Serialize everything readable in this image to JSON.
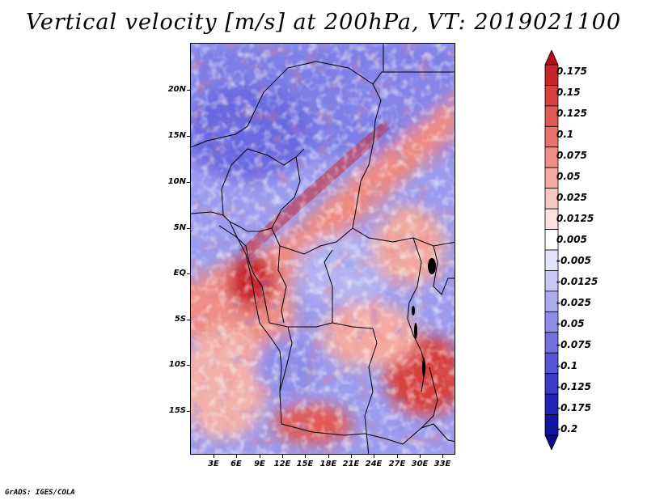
{
  "title": "Vertical velocity [m/s] at 200hPa, VT: 2019021100",
  "footer": "GrADS: IGES/COLA",
  "map": {
    "y_axis_labels": [
      "20N",
      "15N",
      "10N",
      "5N",
      "EQ",
      "5S",
      "10S",
      "15S"
    ],
    "x_axis_labels": [
      "3E",
      "6E",
      "9E",
      "12E",
      "15E",
      "18E",
      "21E",
      "24E",
      "27E",
      "30E",
      "33E"
    ]
  },
  "colorbar": {
    "labels": [
      "0.175",
      "0.15",
      "0.125",
      "0.1",
      "0.075",
      "0.05",
      "0.025",
      "0.0125",
      "0.005",
      "-0.005",
      "-0.0125",
      "-0.025",
      "-0.05",
      "-0.075",
      "-0.1",
      "-0.125",
      "-0.175",
      "-0.2"
    ],
    "colors": [
      "#b40e1c",
      "#c8242c",
      "#d7403e",
      "#e05a55",
      "#e8736c",
      "#ee8e86",
      "#f4aaa3",
      "#f8c8c2",
      "#fbe2de",
      "#ffffff",
      "#e3e3fb",
      "#c9c8f5",
      "#ababef",
      "#8e8ee8",
      "#7272df",
      "#5656d5",
      "#3c3cc9",
      "#2424b9",
      "#1414a5",
      "#0b0b86"
    ]
  }
}
